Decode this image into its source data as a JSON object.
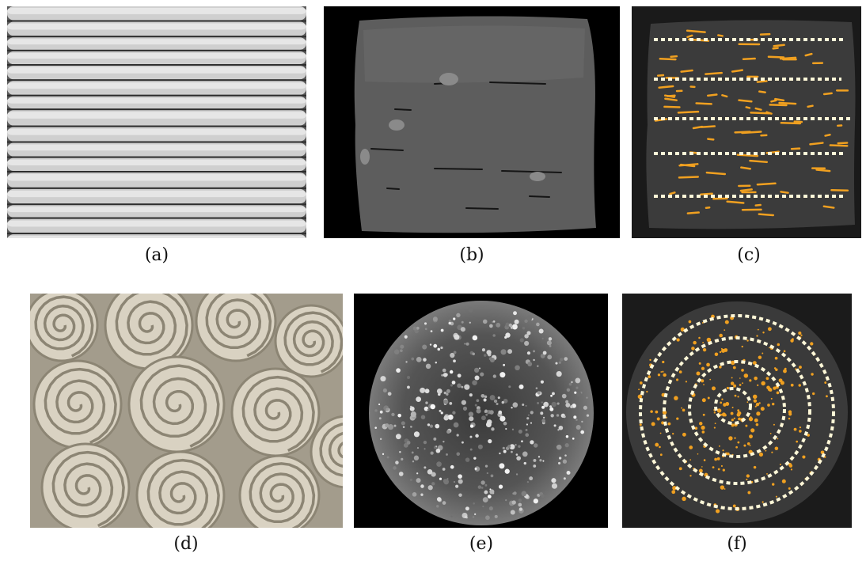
{
  "figure": {
    "panels": [
      {
        "label": "(a)",
        "subject": "layered-coil-wall-photo"
      },
      {
        "label": "(b)",
        "subject": "square-ct-slice-grayscale"
      },
      {
        "label": "(c)",
        "subject": "square-ct-slice-pores-highlighted"
      },
      {
        "label": "(d)",
        "subject": "spiral-coil-surface-photo"
      },
      {
        "label": "(e)",
        "subject": "circular-ct-slice-grayscale"
      },
      {
        "label": "(f)",
        "subject": "circular-ct-slice-pores-highlighted"
      }
    ]
  },
  "colors": {
    "pore_highlight": "#f0a020",
    "guide_dots": "#fff8d8",
    "ct_background": "#000000",
    "clay_photo": "#c8c0ae"
  }
}
